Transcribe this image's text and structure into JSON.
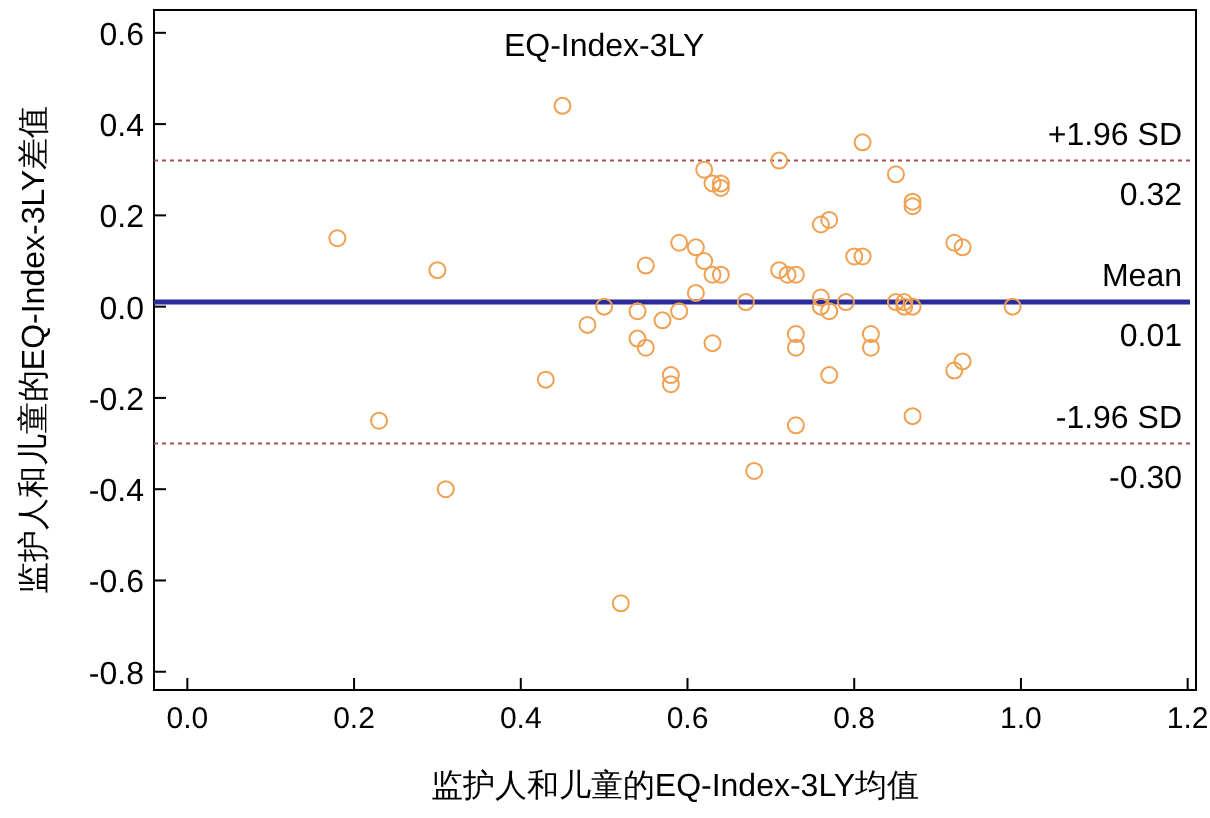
{
  "chart_data": {
    "type": "scatter",
    "title": "EQ-Index-3LY",
    "xlabel": "监护人和儿童的EQ-Index-3LY均值",
    "ylabel": "监护人和儿童的EQ-Index-3LY差值",
    "xlim": [
      -0.04,
      1.21
    ],
    "ylim": [
      -0.84,
      0.65
    ],
    "xticks": [
      {
        "value": 0,
        "label": "0.0"
      },
      {
        "value": 0.2,
        "label": "0.2"
      },
      {
        "value": 0.4,
        "label": "0.4"
      },
      {
        "value": 0.6,
        "label": "0.6"
      },
      {
        "value": 0.8,
        "label": "0.8"
      },
      {
        "value": 1.0,
        "label": "1.0"
      },
      {
        "value": 1.2,
        "label": "1.2"
      }
    ],
    "yticks": [
      {
        "value": 0.6,
        "label": "0.6"
      },
      {
        "value": 0.4,
        "label": "0.4"
      },
      {
        "value": 0.2,
        "label": "0.2"
      },
      {
        "value": 0,
        "label": "0.0"
      },
      {
        "value": -0.2,
        "label": "-0.2"
      },
      {
        "value": -0.4,
        "label": "-0.4"
      },
      {
        "value": -0.6,
        "label": "-0.6"
      },
      {
        "value": -0.8,
        "label": "-0.8"
      }
    ],
    "marker": "circle",
    "grid": false,
    "annotations": [
      {
        "text": "0.32",
        "y": 0.32
      },
      {
        "text": "0.01",
        "y": 0.01
      },
      {
        "text": "-0.30",
        "y": -0.3
      }
    ],
    "series": [
      {
        "color": "#f0a050",
        "x": [
          0.18,
          0.3,
          0.23,
          0.31,
          0.43,
          0.45,
          0.52,
          0.59,
          0.61,
          0.55,
          0.62,
          0.63,
          0.62,
          0.63,
          0.61,
          0.59,
          0.57,
          0.54,
          0.5,
          0.48,
          0.54,
          0.55,
          0.63,
          0.58,
          0.58,
          0.64,
          0.64,
          0.71,
          0.81,
          0.85,
          0.87,
          0.87,
          0.76,
          0.77,
          0.92,
          0.93,
          0.64,
          0.71,
          0.72,
          0.73,
          0.8,
          0.81,
          0.67,
          0.76,
          0.76,
          0.77,
          0.79,
          0.85,
          0.86,
          0.86,
          0.87,
          0.99,
          0.73,
          0.73,
          0.82,
          0.82,
          0.77,
          0.92,
          0.93,
          0.73,
          0.87,
          0.68
        ],
        "values": [
          0.15,
          0.08,
          -0.25,
          -0.4,
          -0.16,
          0.44,
          -0.65,
          0.14,
          0.13,
          0.09,
          0.3,
          0.27,
          0.1,
          0.07,
          0.03,
          -0.01,
          -0.03,
          -0.01,
          0.0,
          -0.04,
          -0.07,
          -0.09,
          -0.08,
          -0.15,
          -0.17,
          0.27,
          0.26,
          0.32,
          0.36,
          0.29,
          0.23,
          0.22,
          0.18,
          0.19,
          0.14,
          0.13,
          0.07,
          0.08,
          0.07,
          0.07,
          0.11,
          0.11,
          0.01,
          0.02,
          0.0,
          -0.01,
          0.01,
          0.01,
          0.01,
          0.0,
          0.0,
          0.0,
          -0.06,
          -0.09,
          -0.06,
          -0.09,
          -0.15,
          -0.14,
          -0.12,
          -0.26,
          -0.24,
          -0.36
        ]
      }
    ],
    "ref_lines": [
      {
        "axis": "y",
        "value": 0.32,
        "label": "+1.96 SD",
        "color": "#a05050",
        "line_style": "dotted"
      },
      {
        "axis": "y",
        "value": 0.01,
        "label": "Mean",
        "color": "#2b2b9a",
        "line_style": "solid"
      },
      {
        "axis": "y",
        "value": -0.3,
        "label": "-1.96 SD",
        "color": "#a05050",
        "line_style": "dotted"
      }
    ]
  }
}
